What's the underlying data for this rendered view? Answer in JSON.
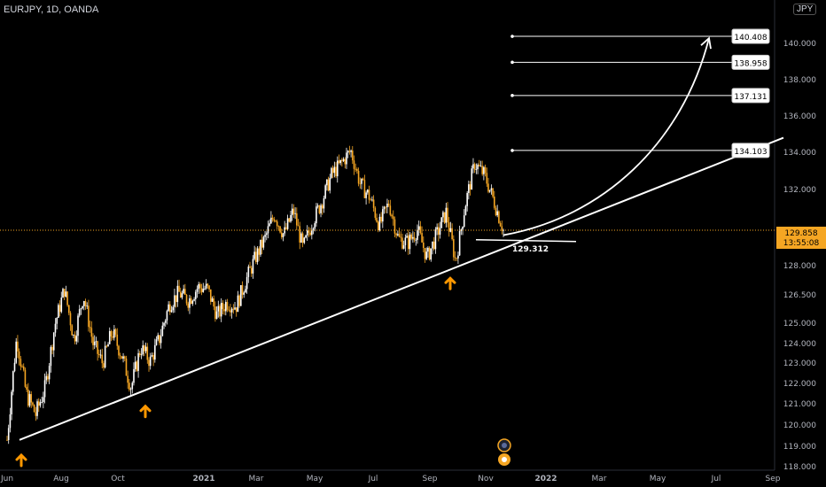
{
  "header": {
    "symbol": "EURJPY, 1D, OANDA",
    "currency": "JPY"
  },
  "colors": {
    "background": "#000000",
    "up": "#ffffff",
    "down": "#f5a623",
    "price_line": "#f5a623",
    "price_tag": "#f5a623",
    "arrow": "#ff9800",
    "annotation": "#ffffff"
  },
  "chart_data": {
    "type": "candlestick",
    "y_axis": {
      "ylim": [
        118.0,
        142.0
      ],
      "ticks": [
        "118.000",
        "119.000",
        "120.000",
        "121.000",
        "122.000",
        "123.000",
        "124.000",
        "125.000",
        "126.500",
        "128.000",
        "129.858",
        "132.000",
        "134.000",
        "136.000",
        "138.000",
        "140.000"
      ]
    },
    "x_axis": {
      "ticks": [
        "Jun",
        "Aug",
        "Oct",
        "2021",
        "Mar",
        "May",
        "Jul",
        "Sep",
        "Nov",
        "2022",
        "Mar",
        "May",
        "Jul",
        "Sep"
      ]
    },
    "series_path": [
      [
        "Jun",
        119.3
      ],
      [
        "Jun",
        124.3
      ],
      [
        "Jun",
        121.5
      ],
      [
        "Jul",
        120.5
      ],
      [
        "Jul",
        121.8
      ],
      [
        "Jul",
        124.9
      ],
      [
        "Aug",
        126.8
      ],
      [
        "Aug",
        124.2
      ],
      [
        "Aug",
        126.5
      ],
      [
        "Sep",
        124.0
      ],
      [
        "Sep",
        123.0
      ],
      [
        "Sep",
        124.6
      ],
      [
        "Oct",
        123.4
      ],
      [
        "Oct",
        121.8
      ],
      [
        "Oct",
        123.8
      ],
      [
        "Nov",
        123.1
      ],
      [
        "Nov",
        124.3
      ],
      [
        "Nov",
        126.0
      ],
      [
        "Dec",
        126.6
      ],
      [
        "Dec",
        126.2
      ],
      [
        "Dec",
        126.9
      ],
      [
        "2021",
        126.8
      ],
      [
        "2021",
        125.4
      ],
      [
        "2021",
        126.1
      ],
      [
        "Feb",
        125.9
      ],
      [
        "Feb",
        127.2
      ],
      [
        "Feb",
        128.4
      ],
      [
        "Mar",
        129.4
      ],
      [
        "Mar",
        130.7
      ],
      [
        "Mar",
        129.6
      ],
      [
        "Apr",
        130.9
      ],
      [
        "Apr",
        128.9
      ],
      [
        "Apr",
        130.3
      ],
      [
        "May",
        131.4
      ],
      [
        "May",
        132.8
      ],
      [
        "May",
        133.4
      ],
      [
        "Jun",
        134.1
      ],
      [
        "Jun",
        132.3
      ],
      [
        "Jun",
        131.6
      ],
      [
        "Jul",
        130.1
      ],
      [
        "Jul",
        131.3
      ],
      [
        "Jul",
        129.4
      ],
      [
        "Aug",
        129.2
      ],
      [
        "Aug",
        129.9
      ],
      [
        "Aug",
        128.4
      ],
      [
        "Sep",
        129.6
      ],
      [
        "Sep",
        130.8
      ],
      [
        "Sep",
        128.2
      ],
      [
        "Oct",
        131.2
      ],
      [
        "Oct",
        133.4
      ],
      [
        "Oct",
        132.8
      ],
      [
        "Nov",
        131.4
      ],
      [
        "Nov",
        129.858
      ]
    ],
    "last_price": "129.858",
    "countdown": "13:55:08",
    "support_level": {
      "label": "129.312",
      "value": 129.312
    },
    "targets": [
      {
        "label": "140.408",
        "value": 140.408
      },
      {
        "label": "138.958",
        "value": 138.958
      },
      {
        "label": "137.131",
        "value": 137.131
      },
      {
        "label": "134.103",
        "value": 134.103
      }
    ],
    "trendline": {
      "start": [
        "Jun",
        119.3
      ],
      "end": [
        "Sep 2022",
        134.8
      ]
    },
    "arrow_markers": [
      "Jun",
      "Oct",
      "Sep"
    ],
    "grid": false
  }
}
